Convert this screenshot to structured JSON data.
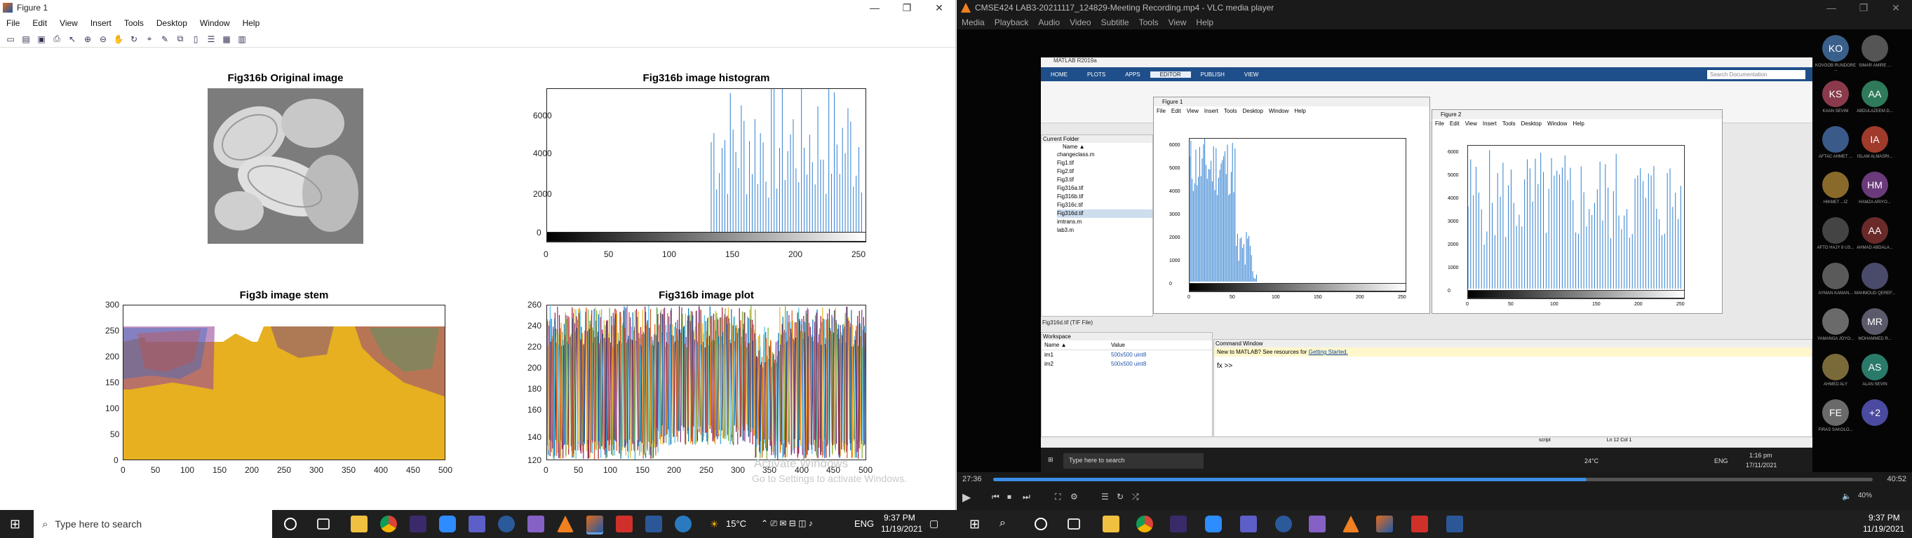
{
  "figure_window": {
    "title": "Figure 1",
    "menu": [
      "File",
      "Edit",
      "View",
      "Insert",
      "Tools",
      "Desktop",
      "Window",
      "Help"
    ],
    "plots": {
      "original": {
        "title": "Fig316b Original image"
      },
      "histogram": {
        "title": "Fig316b image histogram",
        "yticks": [
          "6000",
          "4000",
          "2000",
          "0"
        ],
        "xticks": [
          "0",
          "50",
          "100",
          "150",
          "200",
          "250"
        ]
      },
      "stem": {
        "title": "Fig3b image stem",
        "yticks": [
          "300",
          "250",
          "200",
          "150",
          "100",
          "50",
          "0"
        ],
        "xticks": [
          "0",
          "50",
          "100",
          "150",
          "200",
          "250",
          "300",
          "350",
          "400",
          "450",
          "500"
        ]
      },
      "plot": {
        "title": "Fig316b image plot",
        "yticks": [
          "260",
          "240",
          "220",
          "200",
          "180",
          "160",
          "140",
          "120"
        ],
        "xticks": [
          "0",
          "50",
          "100",
          "150",
          "200",
          "250",
          "300",
          "350",
          "400",
          "450",
          "500"
        ]
      }
    },
    "watermark_line1": "Activate Windows",
    "watermark_line2": "Go to Settings to activate Windows."
  },
  "vlc": {
    "title": "CMSE424 LAB3-20211117_124829-Meeting Recording.mp4 - VLC media player",
    "menu": [
      "Media",
      "Playback",
      "Audio",
      "Video",
      "Subtitle",
      "Tools",
      "View",
      "Help"
    ],
    "time_elapsed": "27:36",
    "time_total": "40:52",
    "progress": 0.675,
    "volume": "40%",
    "inner": {
      "matlab_title": "MATLAB R2019a",
      "matlab_tabs": [
        "HOME",
        "PLOTS",
        "APPS",
        "EDITOR",
        "PUBLISH",
        "VIEW"
      ],
      "search_placeholder": "Search Documentation",
      "current_folder_label": "Current Folder",
      "name_header": "Name ▲",
      "files": [
        "changeclass.m",
        "Fig1.tif",
        "Fig2.tif",
        "Fig3.tif",
        "Fig316a.tif",
        "Fig316b.tif",
        "Fig316c.tif",
        "Fig316d.tif",
        "imtrans.m",
        "lab3.m"
      ],
      "selected_file": "Fig316d.tif (TIF File)",
      "workspace_label": "Workspace",
      "workspace_headers": [
        "Name ▲",
        "Value"
      ],
      "workspace_rows": [
        [
          "im1",
          "500x500 uint8"
        ],
        [
          "im2",
          "500x500 uint8"
        ]
      ],
      "command_window_label": "Command Window",
      "command_hint": "New to MATLAB? See resources for",
      "command_link": "Getting Started.",
      "prompt": "fx >>",
      "status_script": "script",
      "status_pos": "Ln 12    Col 1",
      "fig1_title": "Figure 1",
      "fig2_title": "Figure 2",
      "fig_menu": [
        "File",
        "Edit",
        "View",
        "Insert",
        "Tools",
        "Desktop",
        "Window",
        "Help"
      ],
      "fig1_yticks": [
        "6000",
        "5000",
        "4000",
        "3000",
        "2000",
        "1000",
        "0"
      ],
      "fig1_xticks": [
        "0",
        "50",
        "100",
        "150",
        "200",
        "250"
      ],
      "fig2_yticks": [
        "6000",
        "5000",
        "4000",
        "3000",
        "2000",
        "1000",
        "0"
      ],
      "fig2_xticks": [
        "0",
        "50",
        "100",
        "150",
        "200",
        "250"
      ],
      "inner_search": "Type here to search",
      "inner_temp": "24°C",
      "inner_lang": "ENG",
      "inner_time": "1:16 pm",
      "inner_date": "17/11/2021"
    },
    "participants": [
      {
        "initials": "KO",
        "color": "#3a5f8a",
        "name": "KOVOOB RUNDORE ..."
      },
      {
        "initials": "",
        "color": "#555",
        "name": "SIMAR AMIRE ..."
      },
      {
        "initials": "KS",
        "color": "#8a3a4a",
        "name": "KAAN SEVIM"
      },
      {
        "initials": "AA",
        "color": "#2f7a5a",
        "name": "ABDULAZEEM D..."
      },
      {
        "initials": "",
        "color": "#3a5a8a",
        "name": "AFTAC AHMET ..."
      },
      {
        "initials": "IA",
        "color": "#a03a2a",
        "name": "ISLAM ALMASRI..."
      },
      {
        "initials": "",
        "color": "#8a6a2a",
        "name": "HIKMET ...IZ"
      },
      {
        "initials": "HM",
        "color": "#6a3a7a",
        "name": "HAMZA ARIYO..."
      },
      {
        "initials": "",
        "color": "#444",
        "name": "AFTO HAJY 8 US..."
      },
      {
        "initials": "AA",
        "color": "#6a2a2a",
        "name": "AHMAD ABDALA..."
      },
      {
        "initials": "",
        "color": "#5a5a5a",
        "name": "AYMAN KAMAN..."
      },
      {
        "initials": "",
        "color": "#4a4a6a",
        "name": "MAHMOUD QEREF..."
      },
      {
        "initials": "",
        "color": "#6a6a6a",
        "name": "YAMANGA JOYO..."
      },
      {
        "initials": "MR",
        "color": "#5a5a6a",
        "name": "MOHAMMED R..."
      },
      {
        "initials": "",
        "color": "#7a6a3a",
        "name": "AHMED ALY"
      },
      {
        "initials": "AS",
        "color": "#2a7a6a",
        "name": "ALAN SEVIN"
      },
      {
        "initials": "FE",
        "color": "#6a6a6a",
        "name": "FIRAS SAKOLO..."
      },
      {
        "initials": "+2",
        "color": "#4a4aa0",
        "name": ""
      }
    ]
  },
  "taskbar": {
    "search_placeholder": "Type here to search",
    "temp": "15°C",
    "lang": "ENG",
    "time": "9:37 PM",
    "date": "11/19/2021",
    "right_time": "9:37 PM",
    "right_date": "11/19/2021"
  },
  "colors": {
    "plot_blue": "#2f7fd0",
    "stem_fill": "#e6b020",
    "taskbar": "#1f1f1f"
  }
}
